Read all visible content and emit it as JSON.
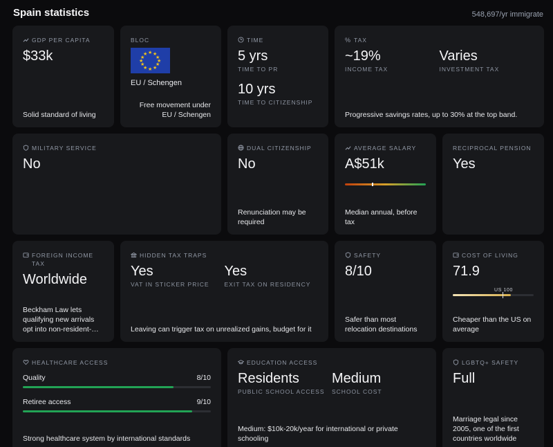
{
  "header": {
    "title": "Spain statistics",
    "immigration": "548,697/yr immigrate"
  },
  "gdp": {
    "label": "GDP PER CAPITA",
    "value": "$33k",
    "note": "Solid standard of living"
  },
  "bloc": {
    "label": "BLOC",
    "value": "EU / Schengen",
    "note": "Free movement under EU / Schengen"
  },
  "time": {
    "label": "TIME",
    "pr_value": "5 yrs",
    "pr_label": "TIME TO PR",
    "cit_value": "10 yrs",
    "cit_label": "TIME TO CITIZENSHIP"
  },
  "tax": {
    "label": "TAX",
    "income_value": "~19%",
    "income_label": "INCOME TAX",
    "invest_value": "Varies",
    "invest_label": "INVESTMENT TAX",
    "note": "Progressive savings rates, up to 30% at the top band."
  },
  "military": {
    "label": "MILITARY SERVICE",
    "value": "No"
  },
  "dual": {
    "label": "DUAL CITIZENSHIP",
    "value": "No",
    "note": "Renunciation may be required"
  },
  "salary": {
    "label": "AVERAGE SALARY",
    "value": "A$51k",
    "note": "Median annual, before tax",
    "marker_fraction": 0.33
  },
  "pension": {
    "label": "RECIPROCAL PENSION",
    "value": "Yes"
  },
  "foreign": {
    "label": "FOREIGN INCOME TAX",
    "value": "Worldwide",
    "note": "Beckham Law lets qualifying new arrivals opt into non-resident-…"
  },
  "traps": {
    "label": "HIDDEN TAX TRAPS",
    "vat_value": "Yes",
    "vat_label": "VAT IN STICKER PRICE",
    "exit_value": "Yes",
    "exit_label": "EXIT TAX ON RESIDENCY",
    "note": "Leaving can trigger tax on unrealized gains, budget for it"
  },
  "safety": {
    "label": "SAFETY",
    "value": "8/10",
    "note": "Safer than most relocation destinations"
  },
  "col": {
    "label": "COST OF LIVING",
    "value": "71.9",
    "marker_label": "US 100",
    "fill_fraction": 0.719,
    "note": "Cheaper than the US on average"
  },
  "health": {
    "label": "HEALTHCARE ACCESS",
    "q_label": "Quality",
    "q_value": "8/10",
    "q_fraction": 0.8,
    "r_label": "Retiree access",
    "r_value": "9/10",
    "r_fraction": 0.9,
    "note": "Strong healthcare system by international standards"
  },
  "edu": {
    "label": "EDUCATION ACCESS",
    "public_value": "Residents",
    "public_label": "PUBLIC SCHOOL ACCESS",
    "cost_value": "Medium",
    "cost_label": "SCHOOL COST",
    "note": "Medium: $10k-20k/year for international or private schooling"
  },
  "lgbtq": {
    "label": "LGBTQ+ SAFETY",
    "value": "Full",
    "note": "Marriage legal since 2005, one of the first countries worldwide"
  },
  "colors": {
    "green": "#22a355",
    "flag_blue": "#1f3ea8",
    "flag_star": "#f4c51b"
  }
}
